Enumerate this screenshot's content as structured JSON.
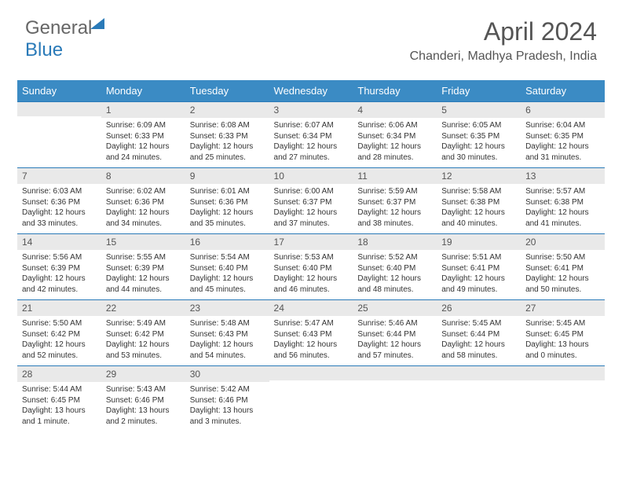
{
  "logo": {
    "part1": "General",
    "part2": "Blue"
  },
  "title": "April 2024",
  "location": "Chanderi, Madhya Pradesh, India",
  "colors": {
    "header_bg": "#3b8bc4",
    "accent": "#2a7ab8",
    "daybar": "#e9e9e9",
    "text": "#333"
  },
  "weekdays": [
    "Sunday",
    "Monday",
    "Tuesday",
    "Wednesday",
    "Thursday",
    "Friday",
    "Saturday"
  ],
  "weeks": [
    [
      null,
      {
        "n": "1",
        "sr": "6:09 AM",
        "ss": "6:33 PM",
        "dl": "12 hours and 24 minutes."
      },
      {
        "n": "2",
        "sr": "6:08 AM",
        "ss": "6:33 PM",
        "dl": "12 hours and 25 minutes."
      },
      {
        "n": "3",
        "sr": "6:07 AM",
        "ss": "6:34 PM",
        "dl": "12 hours and 27 minutes."
      },
      {
        "n": "4",
        "sr": "6:06 AM",
        "ss": "6:34 PM",
        "dl": "12 hours and 28 minutes."
      },
      {
        "n": "5",
        "sr": "6:05 AM",
        "ss": "6:35 PM",
        "dl": "12 hours and 30 minutes."
      },
      {
        "n": "6",
        "sr": "6:04 AM",
        "ss": "6:35 PM",
        "dl": "12 hours and 31 minutes."
      }
    ],
    [
      {
        "n": "7",
        "sr": "6:03 AM",
        "ss": "6:36 PM",
        "dl": "12 hours and 33 minutes."
      },
      {
        "n": "8",
        "sr": "6:02 AM",
        "ss": "6:36 PM",
        "dl": "12 hours and 34 minutes."
      },
      {
        "n": "9",
        "sr": "6:01 AM",
        "ss": "6:36 PM",
        "dl": "12 hours and 35 minutes."
      },
      {
        "n": "10",
        "sr": "6:00 AM",
        "ss": "6:37 PM",
        "dl": "12 hours and 37 minutes."
      },
      {
        "n": "11",
        "sr": "5:59 AM",
        "ss": "6:37 PM",
        "dl": "12 hours and 38 minutes."
      },
      {
        "n": "12",
        "sr": "5:58 AM",
        "ss": "6:38 PM",
        "dl": "12 hours and 40 minutes."
      },
      {
        "n": "13",
        "sr": "5:57 AM",
        "ss": "6:38 PM",
        "dl": "12 hours and 41 minutes."
      }
    ],
    [
      {
        "n": "14",
        "sr": "5:56 AM",
        "ss": "6:39 PM",
        "dl": "12 hours and 42 minutes."
      },
      {
        "n": "15",
        "sr": "5:55 AM",
        "ss": "6:39 PM",
        "dl": "12 hours and 44 minutes."
      },
      {
        "n": "16",
        "sr": "5:54 AM",
        "ss": "6:40 PM",
        "dl": "12 hours and 45 minutes."
      },
      {
        "n": "17",
        "sr": "5:53 AM",
        "ss": "6:40 PM",
        "dl": "12 hours and 46 minutes."
      },
      {
        "n": "18",
        "sr": "5:52 AM",
        "ss": "6:40 PM",
        "dl": "12 hours and 48 minutes."
      },
      {
        "n": "19",
        "sr": "5:51 AM",
        "ss": "6:41 PM",
        "dl": "12 hours and 49 minutes."
      },
      {
        "n": "20",
        "sr": "5:50 AM",
        "ss": "6:41 PM",
        "dl": "12 hours and 50 minutes."
      }
    ],
    [
      {
        "n": "21",
        "sr": "5:50 AM",
        "ss": "6:42 PM",
        "dl": "12 hours and 52 minutes."
      },
      {
        "n": "22",
        "sr": "5:49 AM",
        "ss": "6:42 PM",
        "dl": "12 hours and 53 minutes."
      },
      {
        "n": "23",
        "sr": "5:48 AM",
        "ss": "6:43 PM",
        "dl": "12 hours and 54 minutes."
      },
      {
        "n": "24",
        "sr": "5:47 AM",
        "ss": "6:43 PM",
        "dl": "12 hours and 56 minutes."
      },
      {
        "n": "25",
        "sr": "5:46 AM",
        "ss": "6:44 PM",
        "dl": "12 hours and 57 minutes."
      },
      {
        "n": "26",
        "sr": "5:45 AM",
        "ss": "6:44 PM",
        "dl": "12 hours and 58 minutes."
      },
      {
        "n": "27",
        "sr": "5:45 AM",
        "ss": "6:45 PM",
        "dl": "13 hours and 0 minutes."
      }
    ],
    [
      {
        "n": "28",
        "sr": "5:44 AM",
        "ss": "6:45 PM",
        "dl": "13 hours and 1 minute."
      },
      {
        "n": "29",
        "sr": "5:43 AM",
        "ss": "6:46 PM",
        "dl": "13 hours and 2 minutes."
      },
      {
        "n": "30",
        "sr": "5:42 AM",
        "ss": "6:46 PM",
        "dl": "13 hours and 3 minutes."
      },
      null,
      null,
      null,
      null
    ]
  ],
  "labels": {
    "sunrise": "Sunrise:",
    "sunset": "Sunset:",
    "daylight": "Daylight:"
  }
}
